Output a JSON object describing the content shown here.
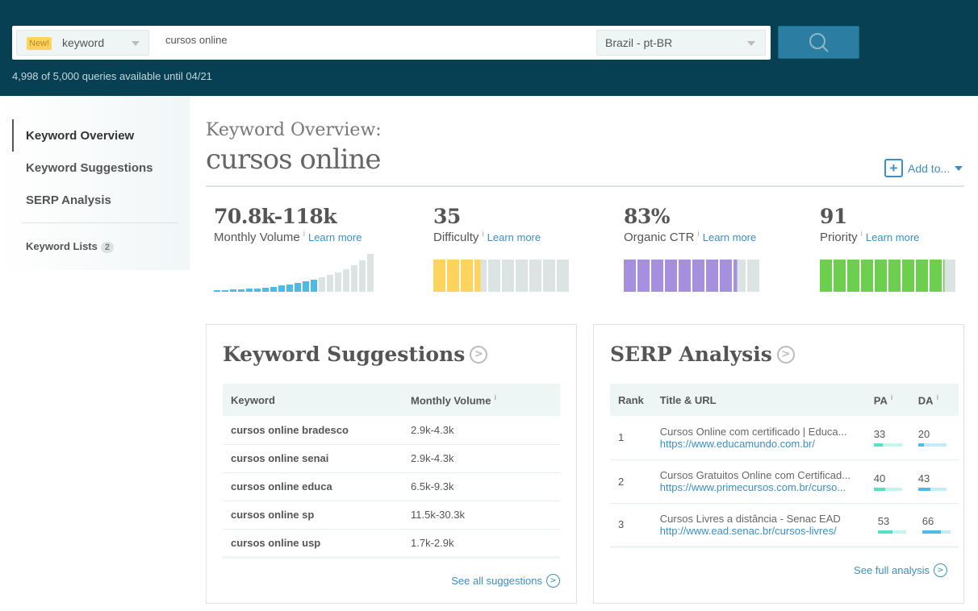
{
  "search": {
    "new_badge": "New!",
    "type": "keyword",
    "query": "cursos online",
    "region": "Brazil - pt-BR",
    "quota": "4,998 of 5,000 queries available until 04/21"
  },
  "sidebar": {
    "items": [
      {
        "label": "Keyword Overview"
      },
      {
        "label": "Keyword Suggestions"
      },
      {
        "label": "SERP Analysis"
      }
    ],
    "lists_label": "Keyword Lists",
    "lists_count": "2"
  },
  "header": {
    "title": "Keyword Overview:",
    "keyword": "cursos online",
    "add_to": "Add to..."
  },
  "metrics": [
    {
      "value": "70.8k-118k",
      "label": "Monthly Volume",
      "info": "i",
      "learn": "Learn more"
    },
    {
      "value": "35",
      "label": "Difficulty",
      "info": "i",
      "learn": "Learn more",
      "fill_percent": 35,
      "color": "#ffd45c"
    },
    {
      "value": "83%",
      "label": "Organic CTR",
      "info": "i",
      "learn": "Learn more",
      "fill_percent": 83,
      "color": "#a58fde"
    },
    {
      "value": "91",
      "label": "Priority",
      "info": "i",
      "learn": "Learn more",
      "fill_percent": 91,
      "color": "#6cd04e"
    }
  ],
  "volume_bars": {
    "relative": [
      2,
      2,
      3,
      3,
      4,
      4,
      5,
      6,
      8,
      9,
      11,
      13,
      15,
      18,
      21,
      24,
      28,
      33,
      39,
      47
    ],
    "highlighted_count": 13,
    "color": "#4dbbe8"
  },
  "suggestions": {
    "title": "Keyword Suggestions",
    "headers": [
      "Keyword",
      "Monthly Volume"
    ],
    "info": "i",
    "rows": [
      [
        "cursos online bradesco",
        "2.9k-4.3k"
      ],
      [
        "cursos online senai",
        "2.9k-4.3k"
      ],
      [
        "cursos online educa",
        "6.5k-9.3k"
      ],
      [
        "cursos online sp",
        "11.5k-30.3k"
      ],
      [
        "cursos online usp",
        "1.7k-2.9k"
      ]
    ],
    "see_all": "See all suggestions"
  },
  "serp": {
    "title": "SERP Analysis",
    "headers": [
      "Rank",
      "Title & URL",
      "PA",
      "DA"
    ],
    "info": "i",
    "rows": [
      {
        "rank": "1",
        "title": "Cursos Online com certificado | Educa...",
        "url": "https://www.educamundo.com.br/",
        "pa": "33",
        "da": "20"
      },
      {
        "rank": "2",
        "title": "Cursos Gratuitos Online com Certificad...",
        "url": "https://www.primecursos.com.br/curso...",
        "pa": "40",
        "da": "43"
      },
      {
        "rank": "3",
        "title": "Cursos Livres a distância - Senac EAD",
        "url": "http://www.ead.senac.br/cursos-livres/",
        "pa": "53",
        "da": "66"
      }
    ],
    "see_full": "See full analysis"
  }
}
